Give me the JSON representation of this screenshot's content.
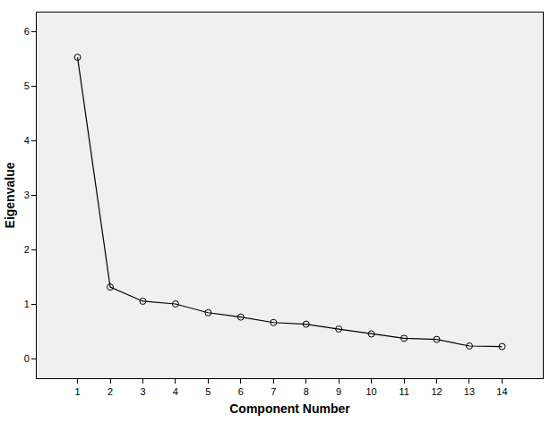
{
  "chart_data": {
    "type": "line",
    "xlabel": "Component Number",
    "ylabel": "Eigenvalue",
    "x": [
      1,
      2,
      3,
      4,
      5,
      6,
      7,
      8,
      9,
      10,
      11,
      12,
      13,
      14
    ],
    "values": [
      5.53,
      1.32,
      1.06,
      1.01,
      0.85,
      0.77,
      0.67,
      0.64,
      0.55,
      0.46,
      0.38,
      0.36,
      0.24,
      0.23
    ],
    "xlim": [
      -0.25,
      15.25
    ],
    "ylim": [
      -0.35,
      6.35
    ],
    "xticks": [
      1,
      2,
      3,
      4,
      5,
      6,
      7,
      8,
      9,
      10,
      11,
      12,
      13,
      14
    ],
    "yticks": [
      0,
      1,
      2,
      3,
      4,
      5,
      6
    ],
    "color": "#000000",
    "marker": "circle-open",
    "line_style": "solid",
    "grid": false
  }
}
